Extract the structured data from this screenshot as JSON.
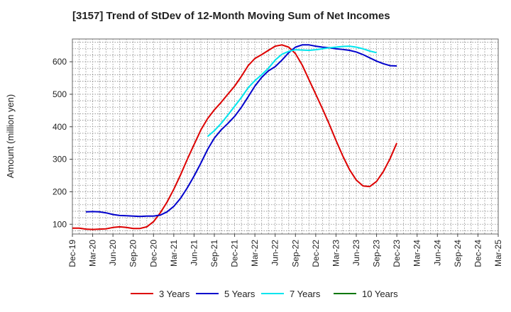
{
  "chart_data": {
    "type": "line",
    "title": "[3157]  Trend of StDev of 12-Month Moving Sum of Net Incomes",
    "ylabel": "Amount (million yen)",
    "xlabel": "",
    "ylim": [
      70,
      670
    ],
    "yticks": [
      100,
      200,
      300,
      400,
      500,
      600
    ],
    "x_tick_labels": [
      "Dec-19",
      "Mar-20",
      "Jun-20",
      "Sep-20",
      "Dec-20",
      "Mar-21",
      "Jun-21",
      "Sep-21",
      "Dec-21",
      "Mar-22",
      "Jun-22",
      "Sep-22",
      "Dec-22",
      "Mar-23",
      "Jun-23",
      "Sep-23",
      "Dec-23",
      "Mar-24",
      "Jun-24",
      "Sep-24",
      "Dec-24",
      "Mar-25"
    ],
    "grid": true,
    "legend_position": "bottom",
    "series": [
      {
        "name": "3 Years",
        "color": "#dd0000",
        "start_index": 0,
        "values": [
          88,
          88,
          85,
          84,
          85,
          86,
          90,
          92,
          90,
          87,
          87,
          92,
          108,
          135,
          168,
          208,
          252,
          300,
          345,
          390,
          425,
          452,
          475,
          500,
          525,
          555,
          588,
          610,
          622,
          635,
          648,
          652,
          645,
          625,
          590,
          545,
          500,
          455,
          408,
          358,
          310,
          268,
          236,
          218,
          216,
          232,
          262,
          302,
          350
        ]
      },
      {
        "name": "5 Years",
        "color": "#0000cc",
        "start_index": 2,
        "values": [
          138,
          139,
          138,
          135,
          130,
          127,
          126,
          125,
          124,
          125,
          125,
          128,
          138,
          155,
          180,
          212,
          248,
          288,
          330,
          365,
          390,
          410,
          432,
          460,
          492,
          525,
          552,
          572,
          585,
          605,
          628,
          645,
          652,
          652,
          648,
          645,
          643,
          640,
          638,
          635,
          630,
          622,
          612,
          602,
          594,
          588,
          587
        ]
      },
      {
        "name": "7 Years",
        "color": "#00e5ee",
        "start_index": 20,
        "values": [
          370,
          388,
          410,
          436,
          463,
          490,
          520,
          542,
          560,
          580,
          605,
          623,
          632,
          637,
          636,
          635,
          637,
          640,
          643,
          645,
          647,
          648,
          645,
          640,
          633,
          628
        ]
      },
      {
        "name": "10 Years",
        "color": "#007700",
        "start_index": 0,
        "values": []
      }
    ]
  }
}
